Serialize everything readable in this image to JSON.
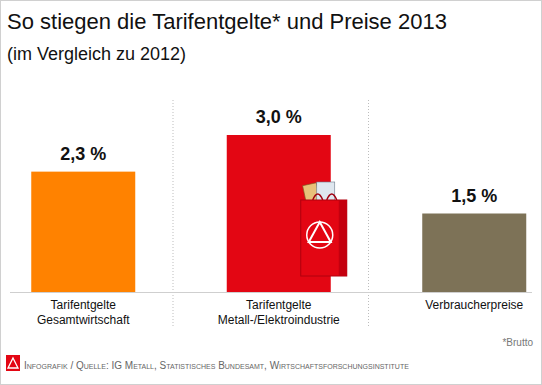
{
  "chart_data": {
    "type": "bar",
    "title": "So stiegen die Tarifentgelte* und Preise 2013",
    "subtitle": "(im Vergleich zu 2012)",
    "categories": [
      "Tarifentgelte Gesamtwirtschaft",
      "Tarifentgelte Metall-/Elektroindustrie",
      "Verbraucherpreise"
    ],
    "values": [
      2.3,
      3.0,
      1.5
    ],
    "value_labels": [
      "2,3 %",
      "3,0 %",
      "1,5 %"
    ],
    "colors": [
      "#ff8200",
      "#e30613",
      "#7d7257"
    ],
    "ylim": [
      0,
      3
    ],
    "data_labels": true,
    "tick_labels": "x",
    "grid": false,
    "annotations": [
      "*Brutto",
      "Infografik / Quelle: IG Metall, Statistisches Bundesamt, Wirtschaftsforschungsinstitute"
    ]
  }
}
